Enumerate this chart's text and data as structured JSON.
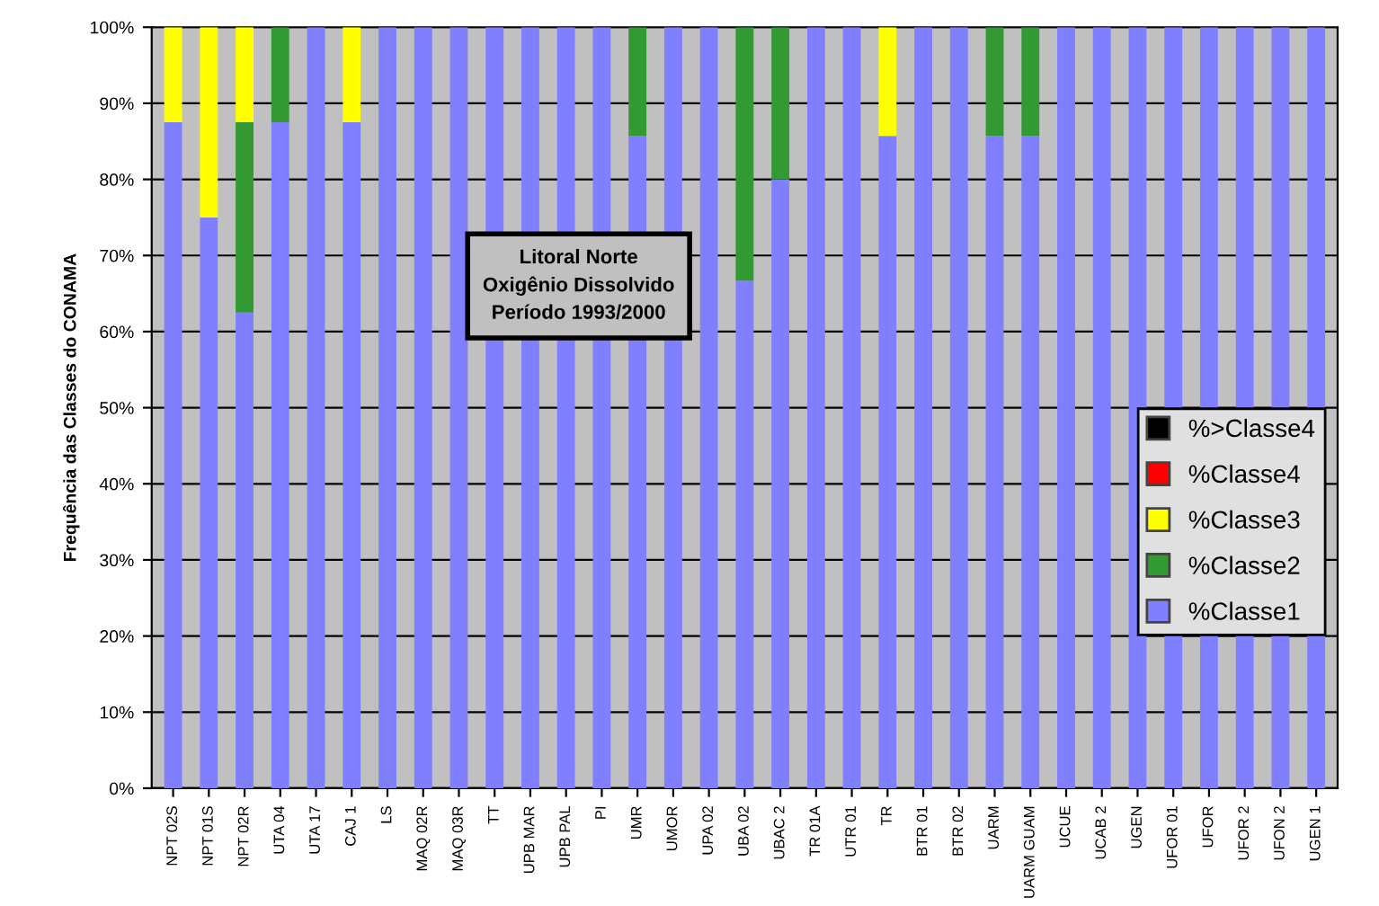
{
  "chart_data": {
    "type": "bar",
    "stacked": true,
    "annotations": [
      "Litoral Norte\nOxigênio Dissolvido\nPeríodo 1993/2000"
    ],
    "ylabel": "Frequência das Classes do CONAMA",
    "categories": [
      "NPT 02S",
      "NPT 01S",
      "NPT 02R",
      "UTA 04",
      "UTA 17",
      "CAJ 1",
      "LS",
      "MAQ 02R",
      "MAQ 03R",
      "TT",
      "UPB MAR",
      "UPB PAL",
      "PI",
      "UMR",
      "UMOR",
      "UPA 02",
      "UBA 02",
      "UBAC 2",
      "TR 01A",
      "UTR 01",
      "TR",
      "BTR 01",
      "BTR 02",
      "UARM",
      "UARM GUAM",
      "UCUE",
      "UCAB 2",
      "UGEN",
      "UFOR 01",
      "UFOR",
      "UFOR 2",
      "UFON 2",
      "UGEN 1"
    ],
    "series": [
      {
        "name": "%Classe1",
        "color": "#8080ff",
        "values": [
          87.5,
          75,
          62.5,
          87.5,
          100,
          87.5,
          100,
          100,
          100,
          100,
          100,
          100,
          100,
          85.7,
          100,
          100,
          66.7,
          80,
          100,
          100,
          85.7,
          100,
          100,
          85.7,
          85.7,
          100,
          100,
          100,
          100,
          100,
          100,
          100,
          100
        ]
      },
      {
        "name": "%Classe2",
        "color": "#339933",
        "values": [
          null,
          null,
          25,
          12.5,
          null,
          null,
          null,
          null,
          null,
          null,
          null,
          null,
          null,
          14.3,
          null,
          null,
          33.3,
          20,
          null,
          null,
          null,
          null,
          null,
          14.3,
          14.3,
          null,
          null,
          null,
          null,
          null,
          null,
          null,
          null
        ]
      },
      {
        "name": "%Classe3",
        "color": "#ffff00",
        "values": [
          12.5,
          25,
          12.5,
          null,
          null,
          12.5,
          null,
          null,
          null,
          null,
          null,
          null,
          null,
          null,
          null,
          null,
          null,
          null,
          null,
          null,
          14.3,
          null,
          null,
          null,
          null,
          null,
          null,
          null,
          null,
          null,
          null,
          null,
          null
        ]
      },
      {
        "name": "%Classe4",
        "color": "#ff0000",
        "values": [
          null,
          null,
          null,
          null,
          null,
          null,
          null,
          null,
          null,
          null,
          null,
          null,
          null,
          null,
          null,
          null,
          null,
          null,
          null,
          null,
          null,
          null,
          null,
          null,
          null,
          null,
          null,
          null,
          null,
          null,
          null,
          null,
          null
        ]
      },
      {
        "name": "%>Classe4",
        "color": "#000000",
        "values": [
          null,
          null,
          null,
          null,
          null,
          null,
          null,
          null,
          null,
          null,
          null,
          null,
          null,
          null,
          null,
          null,
          null,
          null,
          null,
          null,
          null,
          null,
          null,
          null,
          null,
          null,
          null,
          null,
          null,
          null,
          null,
          null,
          null
        ]
      }
    ],
    "ylim": [
      0,
      100
    ],
    "yticks": [
      {
        "value": 0,
        "label": "0%"
      },
      {
        "value": 10,
        "label": "10%"
      },
      {
        "value": 20,
        "label": "20%"
      },
      {
        "value": 30,
        "label": "30%"
      },
      {
        "value": 40,
        "label": "40%"
      },
      {
        "value": 50,
        "label": "50%"
      },
      {
        "value": 60,
        "label": "60%"
      },
      {
        "value": 70,
        "label": "70%"
      },
      {
        "value": 80,
        "label": "80%"
      },
      {
        "value": 90,
        "label": "90%"
      },
      {
        "value": 100,
        "label": "100%"
      }
    ],
    "grid": "y",
    "legend": "right"
  }
}
